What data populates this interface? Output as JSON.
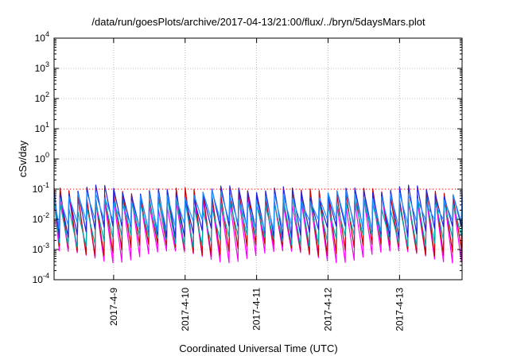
{
  "chart_data": {
    "type": "line",
    "title": "/data/run/goesPlots/archive/2017-04-13/21:00/flux/../bryn/5daysMars.plot",
    "xlabel": "Coordinated Universal Time (UTC)",
    "ylabel": "cSv/day",
    "yscale": "log",
    "ylim": [
      0.0001,
      10000
    ],
    "xlim": [
      "2017-04-08T04:00",
      "2017-04-13T21:00"
    ],
    "y_ticks": [
      {
        "base": "10",
        "exp": "-4"
      },
      {
        "base": "10",
        "exp": "-3"
      },
      {
        "base": "10",
        "exp": "-2"
      },
      {
        "base": "10",
        "exp": "-1"
      },
      {
        "base": "10",
        "exp": "0"
      },
      {
        "base": "10",
        "exp": "1"
      },
      {
        "base": "10",
        "exp": "2"
      },
      {
        "base": "10",
        "exp": "3"
      },
      {
        "base": "10",
        "exp": "4"
      }
    ],
    "x_ticks": [
      "2017-4-9",
      "2017-4-10",
      "2017-4-11",
      "2017-4-12",
      "2017-4-13"
    ],
    "grid": true,
    "reference_line": 0.1,
    "pattern": {
      "type": "sawtooth",
      "period_hours": 3
    },
    "series": [
      {
        "color": "#ff00ff",
        "peak": 0.06,
        "trough": 0.0009
      },
      {
        "color": "#cc0000",
        "peak": 0.1,
        "trough": 0.0015
      },
      {
        "color": "#00aaaa",
        "peak": 0.05,
        "trough": 0.003
      },
      {
        "color": "#2222dd",
        "peak": 0.12,
        "trough": 0.006
      },
      {
        "color": "#1e90ff",
        "peak": 0.08,
        "trough": 0.01
      }
    ]
  }
}
